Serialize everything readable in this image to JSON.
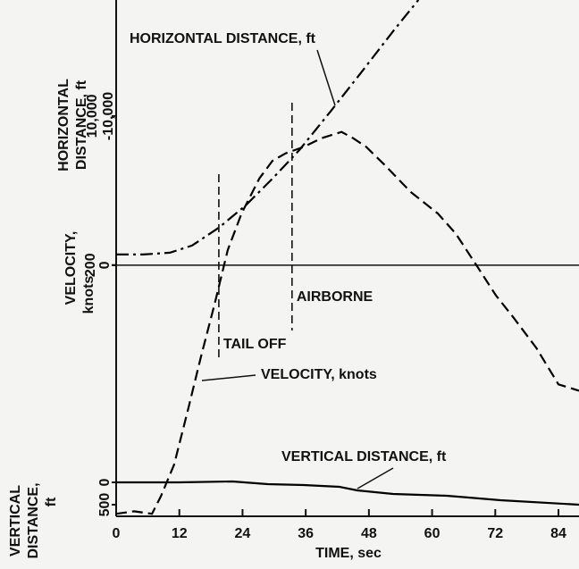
{
  "chart_data": {
    "type": "line",
    "xlabel": "TIME, sec",
    "xlim": [
      0,
      87.9
    ],
    "xticks": [
      0,
      12,
      24,
      36,
      48,
      60,
      72,
      84
    ],
    "events": [
      {
        "label": "TAIL OFF",
        "x": 19.5
      },
      {
        "label": "AIRBORNE",
        "x": 33.4
      }
    ],
    "series": [
      {
        "name": "HORIZONTAL DISTANCE, ft",
        "color": "#000000",
        "dash": "dashdot",
        "ylabel": [
          "HORIZONTAL",
          "DISTANCE, ft"
        ],
        "ylim": [
          -16830,
          17780
        ],
        "yticks": [
          0,
          {
            "value": 10000,
            "label": "10,000"
          }
        ],
        "extra_tick_label": "-10,000",
        "x": [
          0,
          5.1,
          10.2,
          14.4,
          19.5,
          24.6,
          29.7,
          34.8,
          40.7,
          46.7,
          52.6,
          57.4
        ],
        "values": [
          719,
          719,
          838,
          1317,
          2515,
          4012,
          5808,
          7725,
          10300,
          12994,
          15689,
          17784
        ]
      },
      {
        "name": "VELOCITY, knots",
        "color": "#000000",
        "dash": "dashed",
        "ylabel": [
          "VELOCITY,",
          "knots"
        ],
        "ylim": [
          0,
          411
        ],
        "yticks": [
          200
        ],
        "x": [
          0,
          3.4,
          6.8,
          8.5,
          11,
          13.6,
          16.1,
          18.7,
          21.2,
          23.8,
          27.2,
          29.7,
          32.2,
          35.6,
          39,
          42.8,
          45,
          47.5,
          50.9,
          56,
          61.1,
          64.5,
          68.7,
          72.1,
          75.5,
          79.8,
          84,
          87.9
        ],
        "values": [
          2,
          4,
          2,
          16,
          41,
          84,
          127,
          169,
          212,
          241,
          269,
          283,
          289,
          294,
          301,
          306,
          301,
          294,
          280,
          258,
          241,
          225,
          198,
          176,
          158,
          134,
          105,
          100
        ]
      },
      {
        "name": "VERTICAL DISTANCE, ft",
        "color": "#000000",
        "dash": "solid",
        "ylabel": [
          "VERTICAL",
          "DISTANCE,",
          "ft"
        ],
        "ylim": [
          760,
          -10800
        ],
        "yticks": [
          0,
          500
        ],
        "x": [
          0,
          11.9,
          22.1,
          28.8,
          35.6,
          42.4,
          45.8,
          52.6,
          62.8,
          73,
          87.9
        ],
        "values": [
          0,
          0,
          -20,
          40,
          60,
          100,
          180,
          260,
          300,
          400,
          500
        ]
      }
    ]
  }
}
